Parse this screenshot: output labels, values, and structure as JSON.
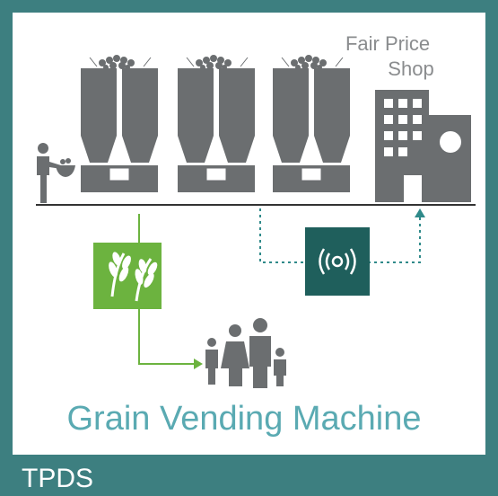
{
  "shop_label": {
    "line1": "Fair Price",
    "line2": "Shop"
  },
  "title": "Grain Vending Machine",
  "footer": "TPDS"
}
